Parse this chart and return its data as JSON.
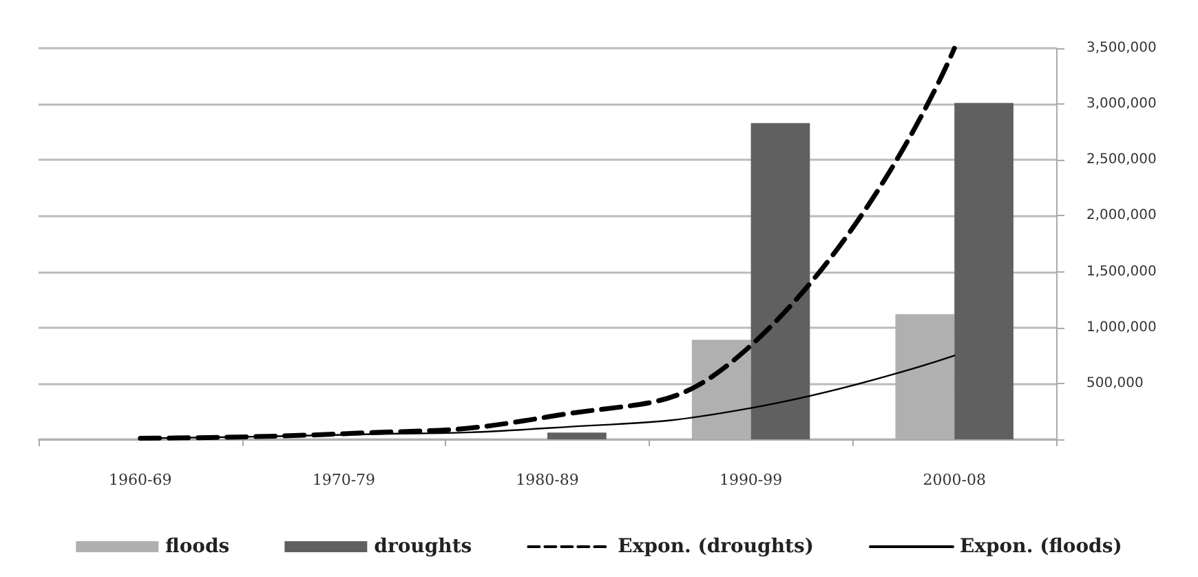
{
  "chart_data": {
    "type": "bar",
    "categories": [
      "1960-69",
      "1970-79",
      "1980-89",
      "1990-99",
      "2000-08"
    ],
    "series": [
      {
        "name": "floods",
        "color": "#b0b0b0",
        "values": [
          0,
          0,
          null,
          890000,
          1120000
        ]
      },
      {
        "name": "droughts",
        "color": "#606060",
        "values": [
          0,
          0,
          60000,
          2830000,
          3010000
        ]
      },
      {
        "name": "Expon. (droughts)",
        "type": "line",
        "color": "#000000",
        "line_style": "dashed",
        "values": [
          10000,
          50000,
          200000,
          840000,
          3500000
        ]
      },
      {
        "name": "Expon. (floods)",
        "type": "line",
        "color": "#000000",
        "line_style": "solid",
        "values": [
          10000,
          40000,
          100000,
          280000,
          750000
        ]
      }
    ],
    "ylim": [
      0,
      3500000
    ],
    "yticks": [
      {
        "value": 0,
        "label": null
      },
      {
        "value": 500000,
        "label": "500,000"
      },
      {
        "value": 1000000,
        "label": "1,000,000"
      },
      {
        "value": 1500000,
        "label": "1,500,000"
      },
      {
        "value": 2000000,
        "label": "2,000,000"
      },
      {
        "value": 2500000,
        "label": "2,500,000"
      },
      {
        "value": 3000000,
        "label": "3,000,000"
      },
      {
        "value": 3500000,
        "label": "3,500,000"
      }
    ],
    "grid": "y",
    "legend": "bottom",
    "marker": "none"
  }
}
